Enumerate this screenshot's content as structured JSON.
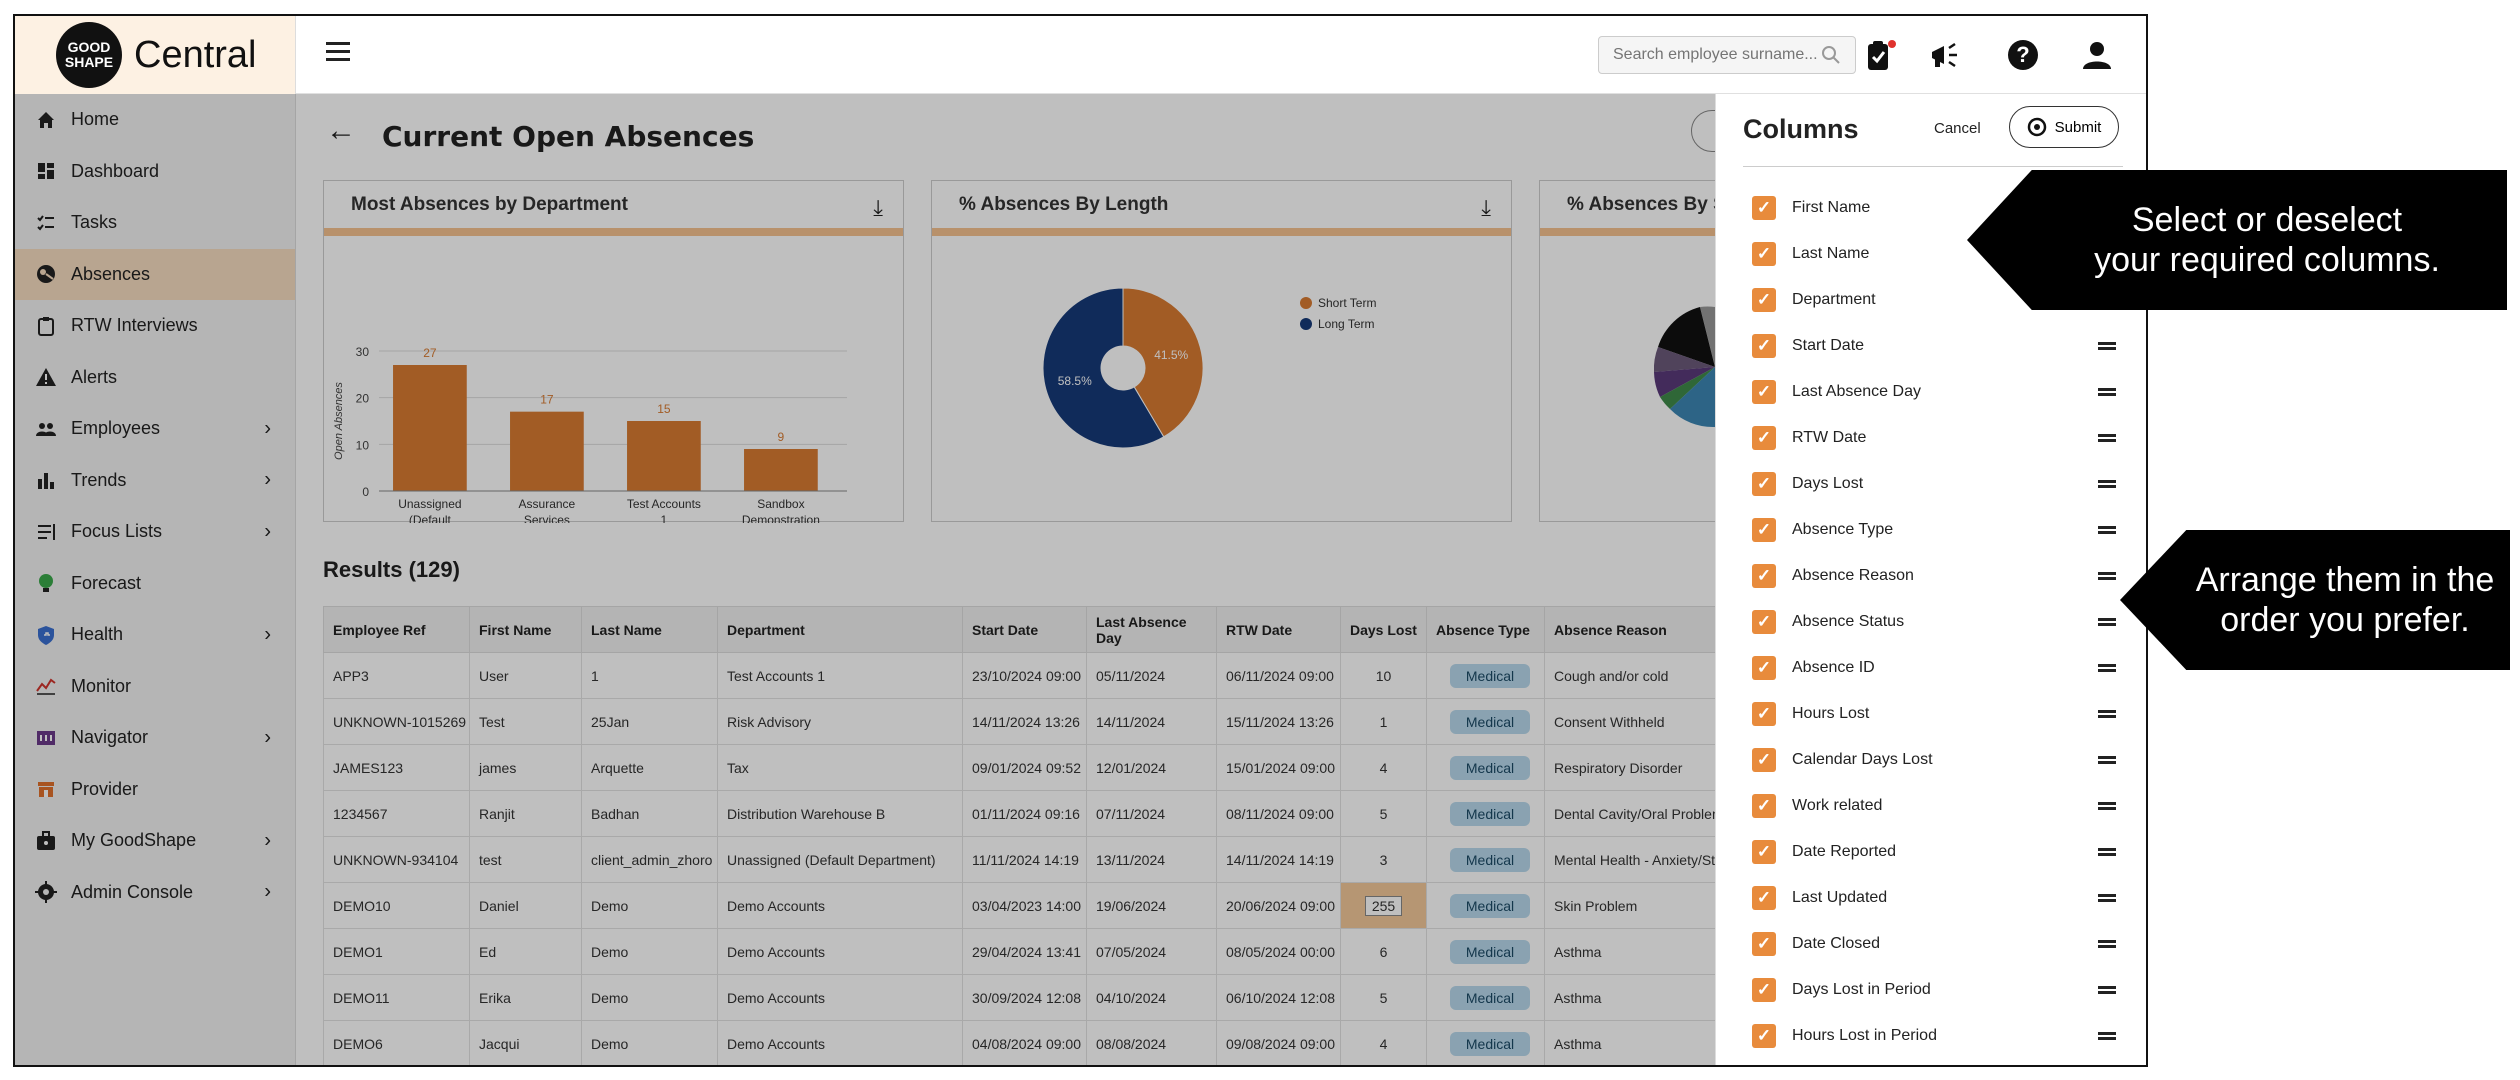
{
  "logo": {
    "line1": "GOOD",
    "line2": "SHAPE",
    "product": "Central"
  },
  "sidebar": {
    "items": [
      {
        "label": "Home",
        "icon": "home-icon",
        "chevron": false,
        "active": false
      },
      {
        "label": "Dashboard",
        "icon": "dashboard-icon",
        "chevron": false,
        "active": false
      },
      {
        "label": "Tasks",
        "icon": "tasks-icon",
        "chevron": false,
        "active": false
      },
      {
        "label": "Absences",
        "icon": "absences-icon",
        "chevron": false,
        "active": true
      },
      {
        "label": "RTW Interviews",
        "icon": "clipboard-icon",
        "chevron": false,
        "active": false
      },
      {
        "label": "Alerts",
        "icon": "warning-icon",
        "chevron": false,
        "active": false
      },
      {
        "label": "Employees",
        "icon": "people-icon",
        "chevron": true,
        "active": false
      },
      {
        "label": "Trends",
        "icon": "bar-chart-icon",
        "chevron": true,
        "active": false
      },
      {
        "label": "Focus Lists",
        "icon": "list-icon",
        "chevron": true,
        "active": false
      },
      {
        "label": "Forecast",
        "icon": "lightbulb-icon",
        "chevron": false,
        "active": false
      },
      {
        "label": "Health",
        "icon": "shield-icon",
        "chevron": true,
        "active": false
      },
      {
        "label": "Monitor",
        "icon": "monitor-icon",
        "chevron": false,
        "active": false
      },
      {
        "label": "Navigator",
        "icon": "navigator-icon",
        "chevron": true,
        "active": false
      },
      {
        "label": "Provider",
        "icon": "provider-icon",
        "chevron": false,
        "active": false
      },
      {
        "label": "My GoodShape",
        "icon": "briefcase-icon",
        "chevron": true,
        "active": false
      },
      {
        "label": "Admin Console",
        "icon": "gear-icon",
        "chevron": true,
        "active": false
      }
    ]
  },
  "header": {
    "search_placeholder": "Search employee surname..."
  },
  "page": {
    "title": "Current Open Absences"
  },
  "cards": [
    {
      "title": "Most Absences by Department"
    },
    {
      "title": "% Absences By Length"
    },
    {
      "title": "% Absences By S"
    }
  ],
  "chart_data": [
    {
      "type": "bar",
      "title": "Most Absences by Department",
      "ylabel": "Open Absences",
      "categories": [
        "Unassigned (Default Department)",
        "Assurance Services",
        "Test Accounts 1",
        "Sandbox Demonstration Plc"
      ],
      "values": [
        27,
        17,
        15,
        9
      ],
      "ylim": [
        0,
        30
      ],
      "yticks": [
        0,
        10,
        20,
        30
      ],
      "color": "#d87b32"
    },
    {
      "type": "pie",
      "title": "% Absences By Length",
      "categories": [
        "Short Term",
        "Long Term"
      ],
      "values": [
        41.5,
        58.5
      ],
      "labels": [
        "41.5%",
        "58.5%"
      ],
      "colors": [
        "#d87b32",
        "#163a78"
      ],
      "legend": "right"
    }
  ],
  "results": {
    "title": "Results (129)",
    "columns": [
      "Employee Ref",
      "First Name",
      "Last Name",
      "Department",
      "Start Date",
      "Last Absence Day",
      "RTW Date",
      "Days Lost",
      "Absence Type",
      "Absence Reason"
    ],
    "rows": [
      [
        "APP3",
        "User",
        "1",
        "Test Accounts 1",
        "23/10/2024 09:00",
        "05/11/2024",
        "06/11/2024 09:00",
        "10",
        "Medical",
        "Cough and/or cold"
      ],
      [
        "UNKNOWN-1015269",
        "Test",
        "25Jan",
        "Risk Advisory",
        "14/11/2024 13:26",
        "14/11/2024",
        "15/11/2024 13:26",
        "1",
        "Medical",
        "Consent Withheld"
      ],
      [
        "JAMES123",
        "james",
        "Arquette",
        "Tax",
        "09/01/2024 09:52",
        "12/01/2024",
        "15/01/2024 09:00",
        "4",
        "Medical",
        "Respiratory Disorder"
      ],
      [
        "1234567",
        "Ranjit",
        "Badhan",
        "Distribution Warehouse B",
        "01/11/2024 09:16",
        "07/11/2024",
        "08/11/2024 09:00",
        "5",
        "Medical",
        "Dental Cavity/Oral Problem"
      ],
      [
        "UNKNOWN-934104",
        "test",
        "client_admin_zhoro",
        "Unassigned (Default Department)",
        "11/11/2024 14:19",
        "13/11/2024",
        "14/11/2024 14:19",
        "3",
        "Medical",
        "Mental Health - Anxiety/Str"
      ],
      [
        "DEMO10",
        "Daniel",
        "Demo",
        "Demo Accounts",
        "03/04/2023 14:00",
        "19/06/2024",
        "20/06/2024 09:00",
        "255",
        "Medical",
        "Skin Problem"
      ],
      [
        "DEMO1",
        "Ed",
        "Demo",
        "Demo Accounts",
        "29/04/2024 13:41",
        "07/05/2024",
        "08/05/2024 00:00",
        "6",
        "Medical",
        "Asthma"
      ],
      [
        "DEMO11",
        "Erika",
        "Demo",
        "Demo Accounts",
        "30/09/2024 12:08",
        "04/10/2024",
        "06/10/2024 12:08",
        "5",
        "Medical",
        "Asthma"
      ],
      [
        "DEMO6",
        "Jacqui",
        "Demo",
        "Demo Accounts",
        "04/08/2024 09:00",
        "08/08/2024",
        "09/08/2024 09:00",
        "4",
        "Medical",
        "Asthma"
      ]
    ]
  },
  "columns_panel": {
    "title": "Columns",
    "cancel_label": "Cancel",
    "submit_label": "Submit",
    "items": [
      "First Name",
      "Last Name",
      "Department",
      "Start Date",
      "Last Absence Day",
      "RTW Date",
      "Days Lost",
      "Absence Type",
      "Absence Reason",
      "Absence Status",
      "Absence ID",
      "Hours Lost",
      "Calendar Days Lost",
      "Work related",
      "Date Reported",
      "Last Updated",
      "Date Closed",
      "Days Lost in Period",
      "Hours Lost in Period"
    ]
  },
  "callouts": {
    "select": [
      "Select or deselect",
      "your required columns."
    ],
    "arrange": [
      "Arrange them in the",
      "order you prefer."
    ]
  }
}
